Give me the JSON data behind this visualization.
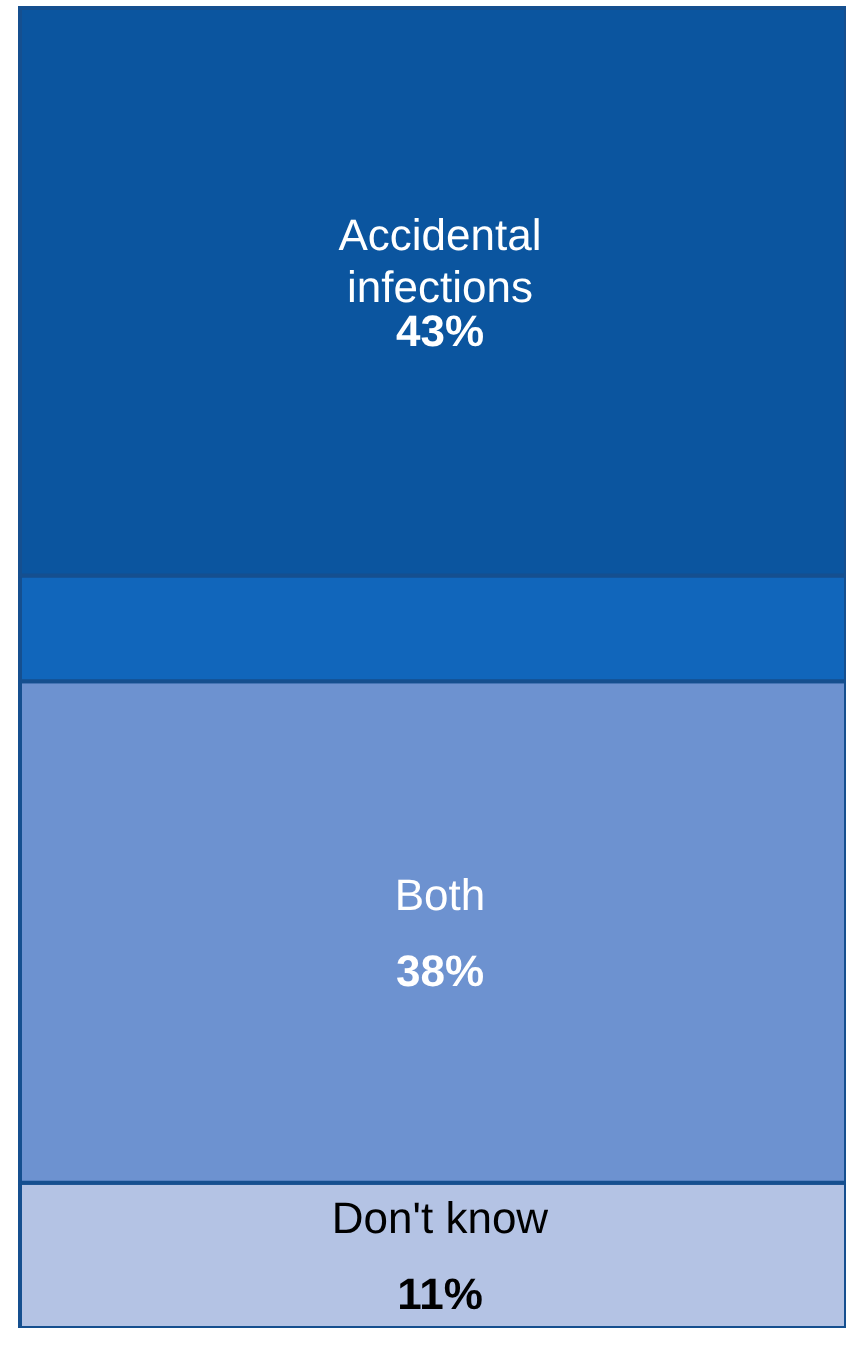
{
  "chart_data": {
    "type": "bar",
    "stacked": true,
    "categories": [
      null
    ],
    "tick_labels": false,
    "series": [
      {
        "name": "Don't know",
        "color": "#b4c3e4",
        "values": [
          11
        ],
        "value_labels": [
          "11%"
        ]
      },
      {
        "name": "Both",
        "color": "#6d92d0",
        "values": [
          38
        ],
        "value_labels": [
          "38%"
        ]
      },
      {
        "color": "#1166bb",
        "values": [
          8
        ]
      },
      {
        "name": "Accidental infections",
        "color": "#0b559f",
        "values": [
          43
        ],
        "value_labels": [
          "43%"
        ]
      }
    ]
  }
}
